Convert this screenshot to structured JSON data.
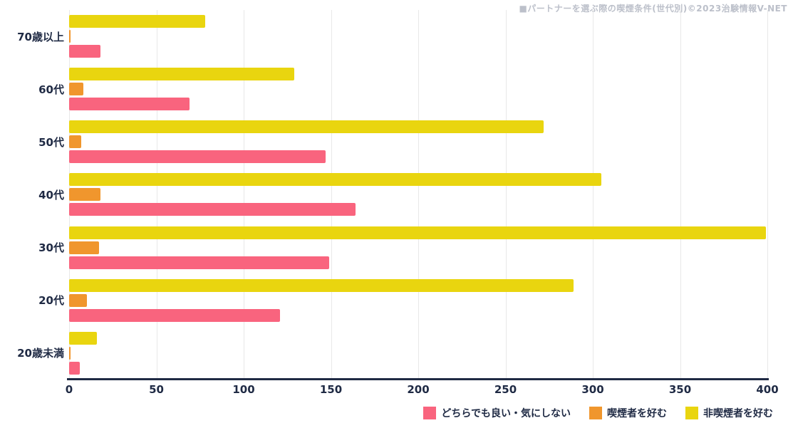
{
  "title": "■パートナーを選ぶ際の喫煙条件(世代別)©2023治験情報V-NET",
  "colors": {
    "pink": "#F9647E",
    "orange": "#F0962D",
    "yellow": "#E9D50F",
    "axis_text": "#1F2A44",
    "grid": "#E8E8E8",
    "axis_line": "#1F2A44",
    "title_gray": "#BCC0CA"
  },
  "chart_data": {
    "type": "bar",
    "orientation": "horizontal",
    "title": "パートナーを選ぶ際の喫煙条件(世代別)",
    "categories": [
      "70歳以上",
      "60代",
      "50代",
      "40代",
      "30代",
      "20代",
      "20歳未満"
    ],
    "series": [
      {
        "key": "prefer-nonsmoker",
        "name": "非喫煙者を好む",
        "color": "#E9D50F",
        "values": [
          78,
          129,
          272,
          305,
          399,
          289,
          16
        ]
      },
      {
        "key": "prefer-smoker",
        "name": "喫煙者を好む",
        "color": "#F0962D",
        "values": [
          1,
          8,
          7,
          18,
          17,
          10,
          1
        ]
      },
      {
        "key": "either-fine",
        "name": "どちらでも良い・気にしない",
        "color": "#F9647E",
        "values": [
          18,
          69,
          147,
          164,
          149,
          121,
          6
        ]
      }
    ],
    "xlim": [
      0,
      400
    ],
    "xticks": [
      0,
      50,
      100,
      150,
      200,
      250,
      300,
      350,
      400
    ],
    "grid": true,
    "legend_position": "bottom-right"
  },
  "legend": {
    "items": [
      {
        "label": "どちらでも良い・気にしない",
        "color": "#F9647E"
      },
      {
        "label": "喫煙者を好む",
        "color": "#F0962D"
      },
      {
        "label": "非喫煙者を好む",
        "color": "#E9D50F"
      }
    ]
  }
}
